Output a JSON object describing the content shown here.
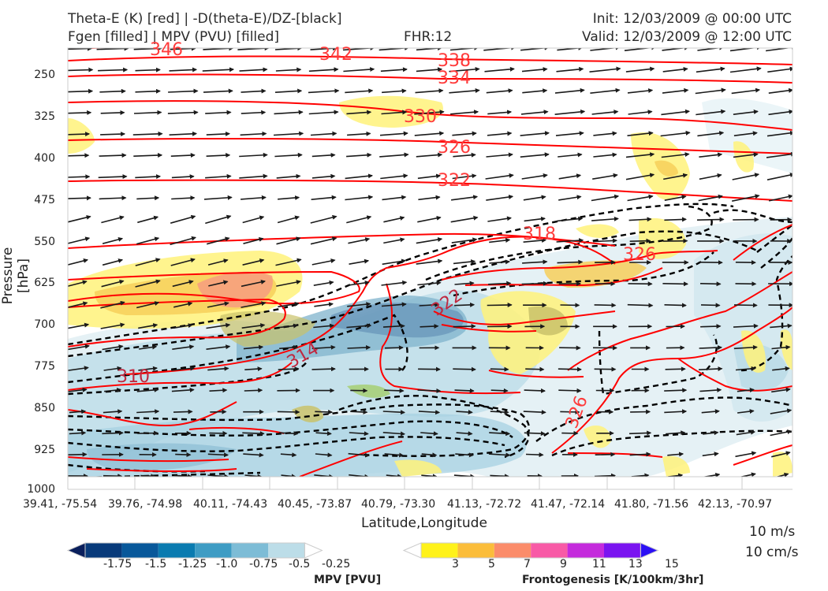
{
  "header": {
    "title_line1": "Theta-E (K) [red] | -D(theta-E)/DZ-[black]",
    "title_line2": "Fgen [filled] | MPV (PVU) [filled]",
    "fhr": "FHR:12",
    "init": "Init: 12/03/2009 @ 00:00 UTC",
    "valid": "Valid: 12/03/2009 @ 12:00 UTC"
  },
  "chart_data": {
    "type": "cross-section",
    "xlabel": "Latitude,Longitude",
    "ylabel": "Pressure [hPa]",
    "ylim": [
      1000,
      200
    ],
    "y_ticks": [
      "250",
      "325",
      "400",
      "475",
      "550",
      "625",
      "700",
      "775",
      "850",
      "925",
      "1000"
    ],
    "x_ticks": [
      "39.41, -75.54",
      "39.76, -74.98",
      "40.11, -74.43",
      "40.45, -73.87",
      "40.79, -73.30",
      "41.13, -72.72",
      "41.47, -72.14",
      "41.80, -71.56",
      "42.13, -70.97"
    ],
    "theta_e_labels": [
      "346",
      "342",
      "338",
      "334",
      "330",
      "326",
      "322",
      "318",
      "326",
      "322",
      "314",
      "310",
      "326"
    ],
    "colors": {
      "theta_e": "#ff0000",
      "dthetae": "#000000",
      "wind": "#1a1a1a"
    },
    "vector_reference": [
      "10 m/s",
      "10 cm/s"
    ],
    "mpv_colorbar": {
      "label": "MPV [PVU]",
      "ticks": [
        "-1.75",
        "-1.5",
        "-1.25",
        "-1.0",
        "-0.75",
        "-0.5",
        "-0.25"
      ],
      "colors": [
        "#0a1f5c",
        "#083a7a",
        "#08589a",
        "#0a7bb0",
        "#3e9cc4",
        "#7dbcd6",
        "#bcdde8",
        "#ffffff"
      ]
    },
    "fgen_colorbar": {
      "label": "Frontogenesis [K/100km/3hr]",
      "ticks": [
        "3",
        "5",
        "7",
        "9",
        "11",
        "13",
        "15"
      ],
      "colors": [
        "#ffffff",
        "#fff21a",
        "#fbbd3a",
        "#fb8c6a",
        "#f85aa6",
        "#c42bdc",
        "#7a14f0",
        "#2c10f4"
      ]
    }
  }
}
